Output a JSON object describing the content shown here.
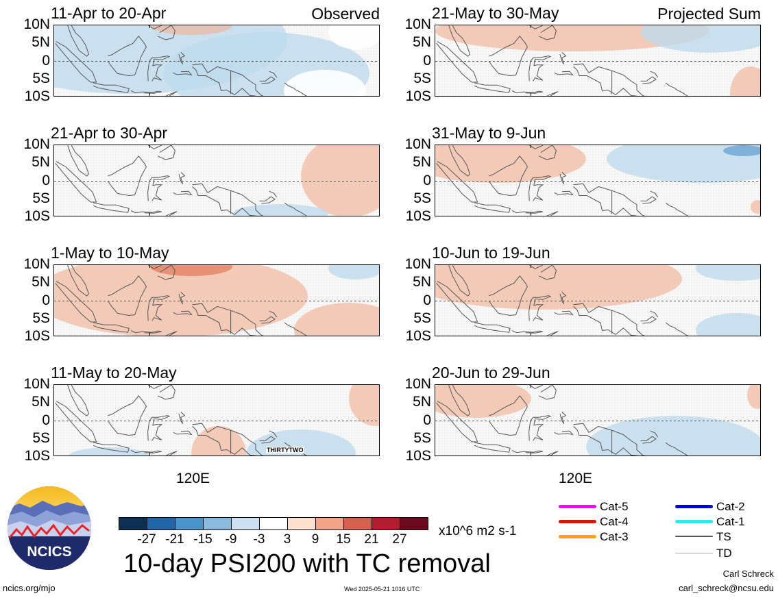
{
  "panels_left": [
    {
      "title": "11-Apr to 20-Apr",
      "tag": "Observed"
    },
    {
      "title": "21-Apr to 30-Apr"
    },
    {
      "title": "1-May to 10-May"
    },
    {
      "title": "11-May to 20-May",
      "annotation": "THIRTYTWO"
    }
  ],
  "panels_right": [
    {
      "title": "21-May to 30-May",
      "tag": "Projected Sum"
    },
    {
      "title": "31-May to 9-Jun"
    },
    {
      "title": "10-Jun to 19-Jun"
    },
    {
      "title": "20-Jun to 29-Jun"
    }
  ],
  "y_axis": [
    "10N",
    "5N",
    "0",
    "5S",
    "10S"
  ],
  "x_axis": {
    "left": "120E",
    "right": "120E"
  },
  "colorbar": {
    "labels": [
      "-27",
      "-21",
      "-15",
      "-9",
      "-3",
      "3",
      "9",
      "15",
      "21",
      "27"
    ],
    "colors": [
      "#0d2f52",
      "#2165a8",
      "#4a93c8",
      "#8bbadf",
      "#cde0ef",
      "#ffffff",
      "#fde0d0",
      "#f3a488",
      "#d5604d",
      "#b01e2f",
      "#6b0a1e"
    ],
    "units": "x10^6 m2 s-1"
  },
  "title": "10-day PSI200 with TC removal",
  "logo": {
    "text": "NCICS"
  },
  "footer": {
    "url": "ncics.org/mjo",
    "timestamp": "Wed 2025-05-21 1016 UTC",
    "author": "Carl Schreck",
    "email": "carl_schreck@ncsu.edu"
  },
  "tc_legend": [
    {
      "label": "Cat-5",
      "color": "#ff00ff"
    },
    {
      "label": "Cat-4",
      "color": "#ff0000"
    },
    {
      "label": "Cat-3",
      "color": "#ffa500"
    },
    {
      "label": "Cat-2",
      "color": "#0000dd"
    },
    {
      "label": "Cat-1",
      "color": "#00ffff"
    },
    {
      "label": "TS",
      "color": "#555555"
    },
    {
      "label": "TD",
      "color": "#aaaaaa"
    }
  ]
}
